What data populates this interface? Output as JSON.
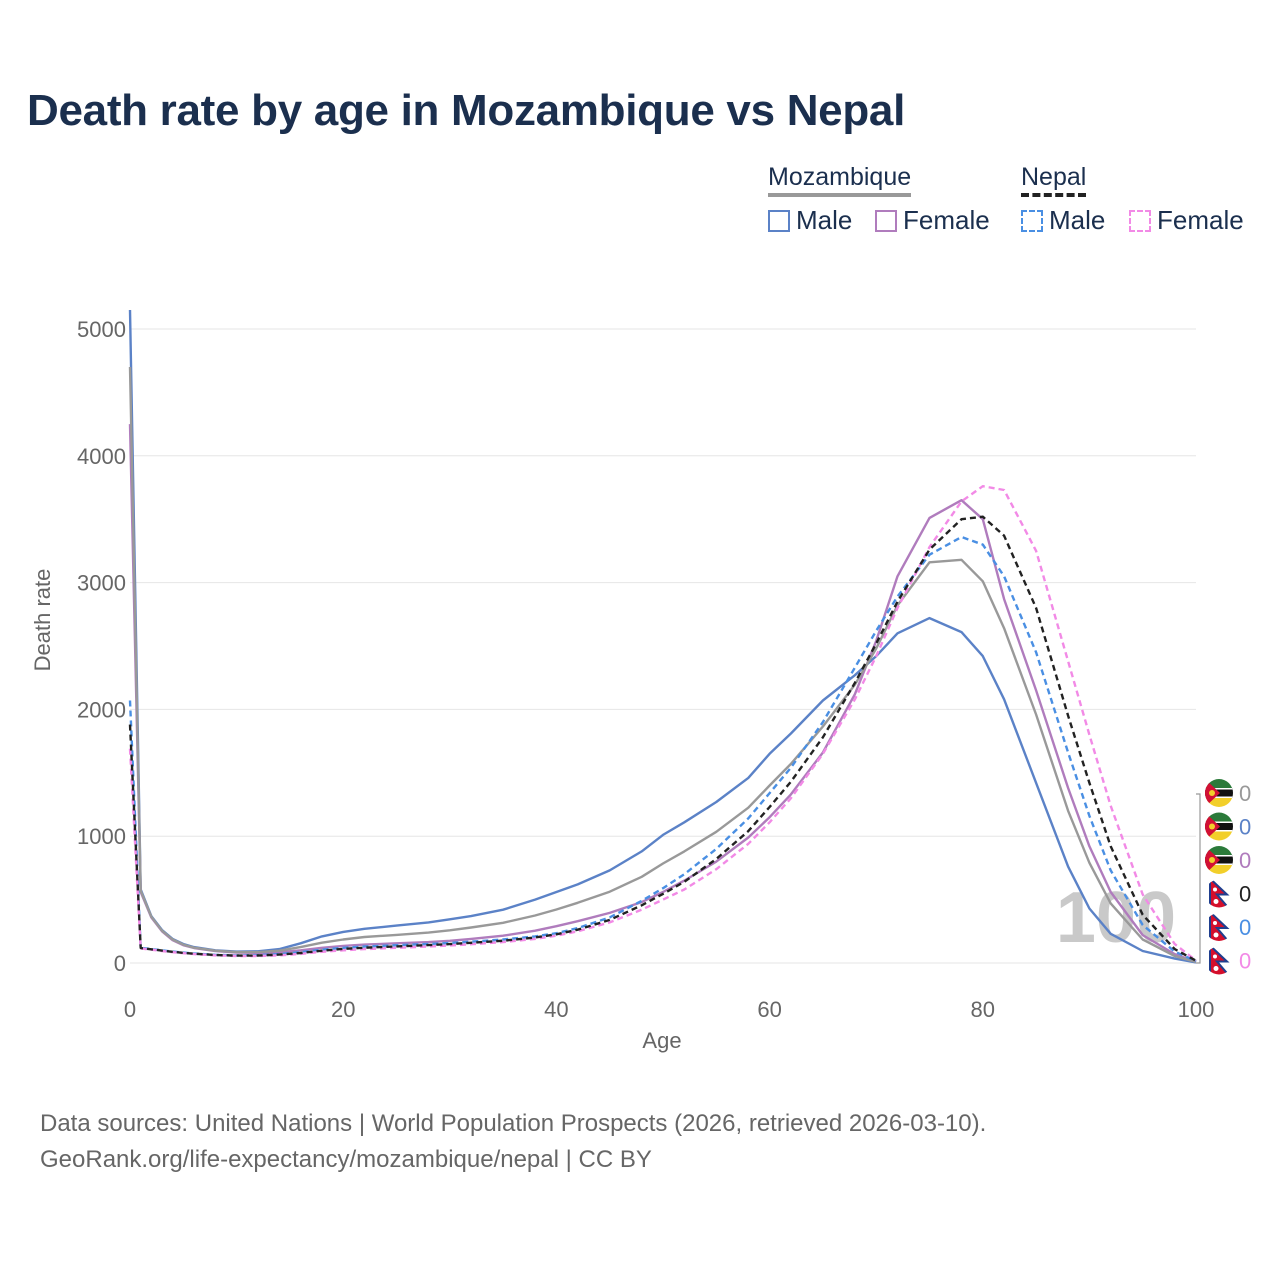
{
  "title": "Death rate by age in Mozambique vs Nepal",
  "legend": {
    "groups": [
      {
        "name": "Mozambique",
        "style": "solid",
        "color": "#999999",
        "items": [
          {
            "label": "Male",
            "color": "#5b82c7"
          },
          {
            "label": "Female",
            "color": "#b07cbd"
          }
        ]
      },
      {
        "name": "Nepal",
        "style": "dashed",
        "color": "#222222",
        "items": [
          {
            "label": "Male",
            "color": "#4a8fe3"
          },
          {
            "label": "Female",
            "color": "#f28ae6"
          }
        ]
      }
    ]
  },
  "year_watermark": "100",
  "source_lines": [
    "Data sources: United Nations | World Population Prospects (2026, retrieved 2026-03-10).",
    "GeoRank.org/life-expectancy/mozambique/nepal | CC BY"
  ],
  "end_labels": [
    {
      "country": "Mozambique",
      "flag": "mozambique-flag",
      "value": "0",
      "color": "#999999"
    },
    {
      "country": "Mozambique",
      "flag": "mozambique-flag",
      "value": "0",
      "color": "#5b82c7"
    },
    {
      "country": "Mozambique",
      "flag": "mozambique-flag",
      "value": "0",
      "color": "#b07cbd"
    },
    {
      "country": "Nepal",
      "flag": "nepal-flag",
      "value": "0",
      "color": "#222222"
    },
    {
      "country": "Nepal",
      "flag": "nepal-flag",
      "value": "0",
      "color": "#4a8fe3"
    },
    {
      "country": "Nepal",
      "flag": "nepal-flag",
      "value": "0",
      "color": "#f28ae6"
    }
  ],
  "chart_data": {
    "type": "line",
    "title": "Death rate by age in Mozambique vs Nepal",
    "xlabel": "Age",
    "ylabel": "Death rate",
    "xlim": [
      0,
      100
    ],
    "ylim": [
      0,
      5000
    ],
    "xticks": [
      0,
      20,
      40,
      60,
      80,
      100
    ],
    "yticks": [
      0,
      1000,
      2000,
      3000,
      4000,
      5000
    ],
    "grid": true,
    "series": [
      {
        "name": "Mozambique Male",
        "country": "Mozambique",
        "sex": "Male",
        "color": "#5b82c7",
        "dash": false,
        "x": [
          0,
          1,
          2,
          3,
          4,
          5,
          6,
          8,
          10,
          12,
          14,
          16,
          18,
          20,
          22,
          25,
          28,
          30,
          32,
          35,
          38,
          40,
          42,
          45,
          48,
          50,
          52,
          55,
          58,
          60,
          62,
          65,
          68,
          70,
          72,
          75,
          78,
          80,
          82,
          85,
          88,
          90,
          92,
          95,
          98,
          100
        ],
        "y": [
          5150,
          580,
          370,
          260,
          190,
          150,
          125,
          100,
          90,
          92,
          110,
          155,
          210,
          245,
          270,
          295,
          320,
          345,
          370,
          420,
          500,
          560,
          620,
          730,
          880,
          1010,
          1110,
          1270,
          1460,
          1650,
          1810,
          2070,
          2270,
          2420,
          2600,
          2720,
          2610,
          2420,
          2080,
          1420,
          760,
          430,
          230,
          95,
          35,
          5
        ]
      },
      {
        "name": "Mozambique Female",
        "country": "Mozambique",
        "sex": "Female",
        "color": "#b07cbd",
        "dash": false,
        "x": [
          0,
          1,
          2,
          3,
          4,
          5,
          6,
          8,
          10,
          12,
          14,
          16,
          18,
          20,
          22,
          25,
          28,
          30,
          32,
          35,
          38,
          40,
          42,
          45,
          48,
          50,
          52,
          55,
          58,
          60,
          62,
          65,
          68,
          70,
          72,
          75,
          78,
          80,
          82,
          85,
          88,
          90,
          92,
          95,
          98,
          100
        ],
        "y": [
          4250,
          560,
          360,
          250,
          180,
          140,
          118,
          95,
          82,
          80,
          85,
          100,
          120,
          135,
          145,
          155,
          165,
          175,
          190,
          215,
          255,
          290,
          330,
          395,
          480,
          560,
          650,
          800,
          990,
          1150,
          1330,
          1660,
          2120,
          2540,
          3050,
          3510,
          3650,
          3500,
          2870,
          2150,
          1380,
          920,
          560,
          220,
          70,
          10
        ]
      },
      {
        "name": "Mozambique Both",
        "country": "Mozambique",
        "sex": "Both",
        "color": "#999999",
        "dash": false,
        "x": [
          0,
          1,
          2,
          3,
          4,
          5,
          6,
          8,
          10,
          12,
          14,
          16,
          18,
          20,
          22,
          25,
          28,
          30,
          32,
          35,
          38,
          40,
          42,
          45,
          48,
          50,
          52,
          55,
          58,
          60,
          62,
          65,
          68,
          70,
          72,
          75,
          78,
          80,
          82,
          85,
          88,
          90,
          92,
          95,
          98,
          100
        ],
        "y": [
          4700,
          570,
          365,
          255,
          185,
          145,
          121,
          97,
          86,
          86,
          97,
          125,
          160,
          185,
          205,
          222,
          240,
          258,
          280,
          317,
          375,
          422,
          475,
          562,
          680,
          785,
          880,
          1035,
          1225,
          1400,
          1570,
          1865,
          2195,
          2480,
          2820,
          3160,
          3180,
          3010,
          2640,
          1960,
          1200,
          790,
          470,
          185,
          55,
          8
        ]
      },
      {
        "name": "Nepal Male",
        "country": "Nepal",
        "sex": "Male",
        "color": "#4a8fe3",
        "dash": true,
        "x": [
          0,
          1,
          2,
          3,
          4,
          5,
          6,
          8,
          10,
          12,
          14,
          16,
          18,
          20,
          22,
          25,
          28,
          30,
          32,
          35,
          38,
          40,
          42,
          45,
          48,
          50,
          52,
          55,
          58,
          60,
          62,
          65,
          68,
          70,
          72,
          75,
          78,
          80,
          82,
          85,
          88,
          90,
          92,
          95,
          98,
          100
        ],
        "y": [
          2070,
          120,
          110,
          100,
          90,
          82,
          75,
          65,
          60,
          62,
          70,
          85,
          105,
          120,
          130,
          140,
          150,
          158,
          168,
          185,
          210,
          235,
          275,
          360,
          490,
          590,
          700,
          900,
          1140,
          1340,
          1540,
          1900,
          2330,
          2620,
          2890,
          3220,
          3360,
          3300,
          3050,
          2450,
          1660,
          1160,
          730,
          300,
          90,
          15
        ]
      },
      {
        "name": "Nepal Female",
        "country": "Nepal",
        "sex": "Female",
        "color": "#f28ae6",
        "dash": true,
        "x": [
          0,
          1,
          2,
          3,
          4,
          5,
          6,
          8,
          10,
          12,
          14,
          16,
          18,
          20,
          22,
          25,
          28,
          30,
          32,
          35,
          38,
          40,
          42,
          45,
          48,
          50,
          52,
          55,
          58,
          60,
          62,
          65,
          68,
          70,
          72,
          75,
          78,
          80,
          82,
          85,
          88,
          90,
          92,
          95,
          98,
          100
        ],
        "y": [
          1690,
          115,
          105,
          95,
          85,
          77,
          70,
          60,
          55,
          55,
          60,
          72,
          88,
          100,
          110,
          120,
          130,
          138,
          148,
          165,
          190,
          215,
          250,
          320,
          420,
          500,
          580,
          740,
          940,
          1110,
          1300,
          1650,
          2080,
          2420,
          2800,
          3280,
          3640,
          3760,
          3730,
          3250,
          2380,
          1800,
          1240,
          540,
          150,
          20
        ]
      },
      {
        "name": "Nepal Both",
        "country": "Nepal",
        "sex": "Both",
        "color": "#222222",
        "dash": true,
        "x": [
          0,
          1,
          2,
          3,
          4,
          5,
          6,
          8,
          10,
          12,
          14,
          16,
          18,
          20,
          22,
          25,
          28,
          30,
          32,
          35,
          38,
          40,
          42,
          45,
          48,
          50,
          52,
          55,
          58,
          60,
          62,
          65,
          68,
          70,
          72,
          75,
          78,
          80,
          82,
          85,
          88,
          90,
          92,
          95,
          98,
          100
        ],
        "y": [
          1880,
          118,
          108,
          98,
          88,
          80,
          73,
          63,
          58,
          59,
          66,
          79,
          97,
          111,
          121,
          131,
          141,
          149,
          159,
          176,
          201,
          226,
          263,
          340,
          455,
          545,
          640,
          820,
          1040,
          1230,
          1430,
          1780,
          2210,
          2520,
          2850,
          3260,
          3500,
          3520,
          3370,
          2800,
          1950,
          1420,
          920,
          380,
          110,
          18
        ]
      }
    ]
  }
}
